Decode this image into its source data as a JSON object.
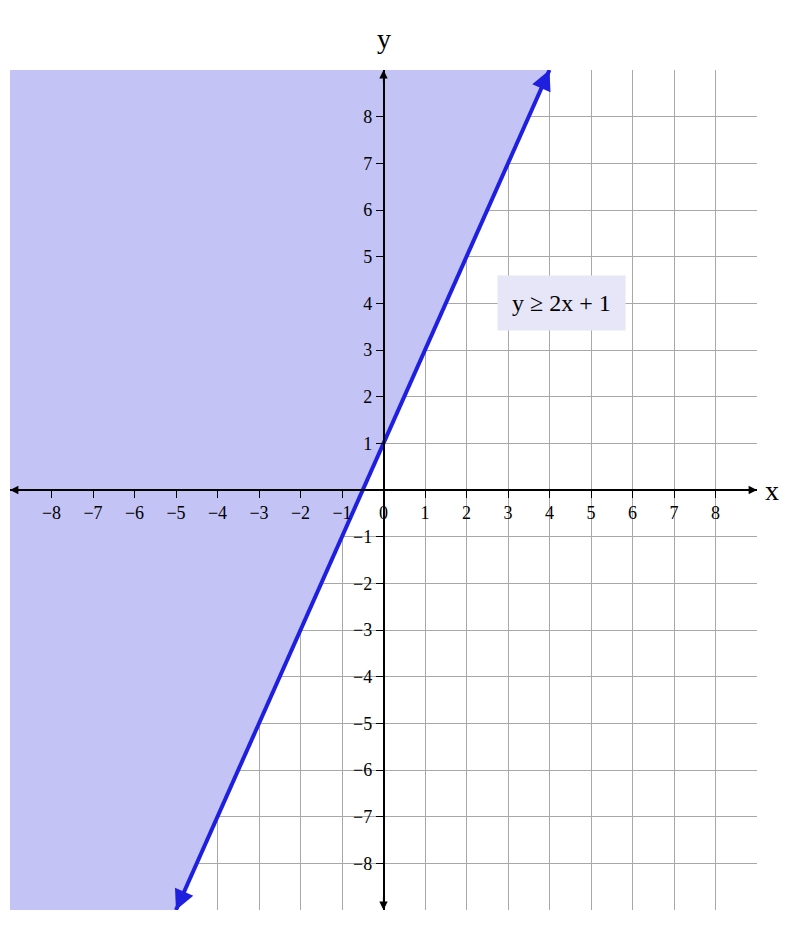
{
  "chart_data": {
    "type": "line",
    "x_label": "x",
    "y_label": "y",
    "xlim": [
      -9,
      9
    ],
    "ylim": [
      -9,
      9
    ],
    "xticks": [
      -8,
      -7,
      -6,
      -5,
      -4,
      -3,
      -2,
      -1,
      0,
      1,
      2,
      3,
      4,
      5,
      6,
      7,
      8
    ],
    "yticks": [
      -8,
      -7,
      -6,
      -5,
      -4,
      -3,
      -2,
      -1,
      1,
      2,
      3,
      4,
      5,
      6,
      7,
      8
    ],
    "grid": true,
    "series": [
      {
        "type": "area",
        "color": "#c3c3f6",
        "x": [
          -9,
          -5,
          4,
          -9
        ],
        "values": [
          -9,
          -9,
          9,
          9
        ]
      },
      {
        "type": "line",
        "color": "#1f1fe0",
        "marker": "arrow",
        "x": [
          -5,
          4
        ],
        "values": [
          -9,
          9
        ]
      }
    ],
    "annotations": [
      {
        "text": "y ≥ 2x + 1",
        "x": 4.3,
        "y": 4
      }
    ]
  }
}
